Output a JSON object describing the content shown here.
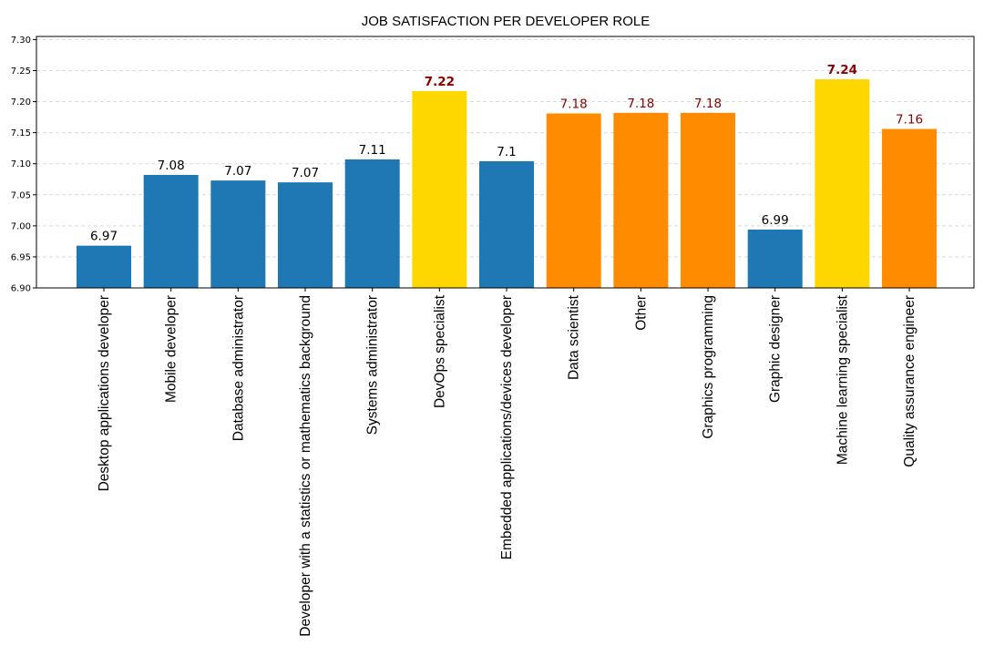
{
  "chart_data": {
    "type": "bar",
    "title": "JOB SATISFACTION PER DEVELOPER ROLE",
    "xlabel": "",
    "ylabel": "",
    "ylim": [
      6.9,
      7.305
    ],
    "yticks": [
      "6.90",
      "6.95",
      "7.00",
      "7.05",
      "7.10",
      "7.15",
      "7.20",
      "7.25",
      "7.30"
    ],
    "grid": "horizontal, dashed",
    "legend": "none",
    "colors": {
      "blue": "#1f77b4",
      "gold": "#ffd700",
      "orange": "#ff8c00",
      "label_default": "#000000",
      "label_highlight": "#8b0000"
    },
    "bars": [
      {
        "category": "Desktop applications developer",
        "value": 6.968,
        "label": "6.97",
        "color": "#1f77b4",
        "label_color": "#000000",
        "label_bold": false
      },
      {
        "category": "Mobile developer",
        "value": 7.082,
        "label": "7.08",
        "color": "#1f77b4",
        "label_color": "#000000",
        "label_bold": false
      },
      {
        "category": "Database administrator",
        "value": 7.073,
        "label": "7.07",
        "color": "#1f77b4",
        "label_color": "#000000",
        "label_bold": false
      },
      {
        "category": "Developer with a statistics or mathematics background",
        "value": 7.07,
        "label": "7.07",
        "color": "#1f77b4",
        "label_color": "#000000",
        "label_bold": false
      },
      {
        "category": "Systems administrator",
        "value": 7.107,
        "label": "7.11",
        "color": "#1f77b4",
        "label_color": "#000000",
        "label_bold": false
      },
      {
        "category": "DevOps specialist",
        "value": 7.217,
        "label": "7.22",
        "color": "#ffd700",
        "label_color": "#8b0000",
        "label_bold": true
      },
      {
        "category": "Embedded applications/devices developer",
        "value": 7.104,
        "label": "7.1",
        "color": "#1f77b4",
        "label_color": "#000000",
        "label_bold": false
      },
      {
        "category": "Data scientist",
        "value": 7.181,
        "label": "7.18",
        "color": "#ff8c00",
        "label_color": "#8b0000",
        "label_bold": false
      },
      {
        "category": "Other",
        "value": 7.182,
        "label": "7.18",
        "color": "#ff8c00",
        "label_color": "#8b0000",
        "label_bold": false
      },
      {
        "category": "Graphics programming",
        "value": 7.182,
        "label": "7.18",
        "color": "#ff8c00",
        "label_color": "#8b0000",
        "label_bold": false
      },
      {
        "category": "Graphic designer",
        "value": 6.994,
        "label": "6.99",
        "color": "#1f77b4",
        "label_color": "#000000",
        "label_bold": false
      },
      {
        "category": "Machine learning specialist",
        "value": 7.236,
        "label": "7.24",
        "color": "#ffd700",
        "label_color": "#8b0000",
        "label_bold": true
      },
      {
        "category": "Quality assurance engineer",
        "value": 7.156,
        "label": "7.16",
        "color": "#ff8c00",
        "label_color": "#8b0000",
        "label_bold": false
      }
    ]
  }
}
